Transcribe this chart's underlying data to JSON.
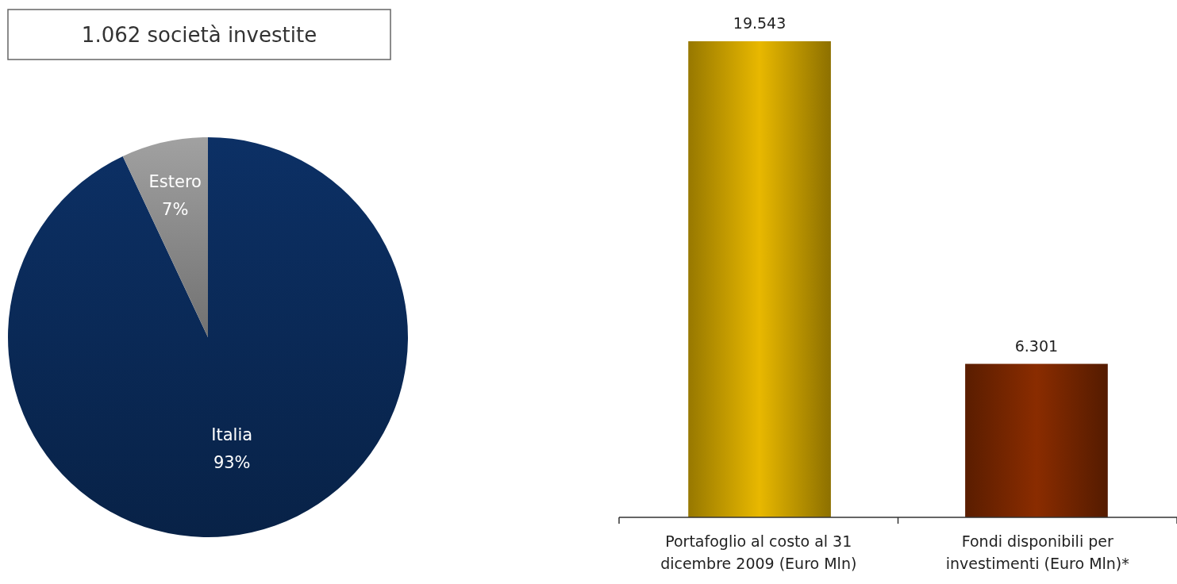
{
  "chart_data": [
    {
      "type": "pie",
      "title": "1.062 società investite",
      "categories": [
        "Italia",
        "Estero"
      ],
      "values": [
        93,
        7
      ],
      "colors": [
        "#0a2a58",
        "#8c8c8c"
      ],
      "value_labels": [
        "93%",
        "7%"
      ]
    },
    {
      "type": "bar",
      "categories": [
        "Portafoglio al costo al 31 dicembre 2009 (Euro Mln)",
        "Fondi disponibili per investimenti (Euro Mln)*"
      ],
      "values": [
        19543,
        6301
      ],
      "colors": [
        "#e8b800",
        "#8a2c00"
      ],
      "value_labels": [
        "19.543",
        "6.301"
      ]
    }
  ]
}
